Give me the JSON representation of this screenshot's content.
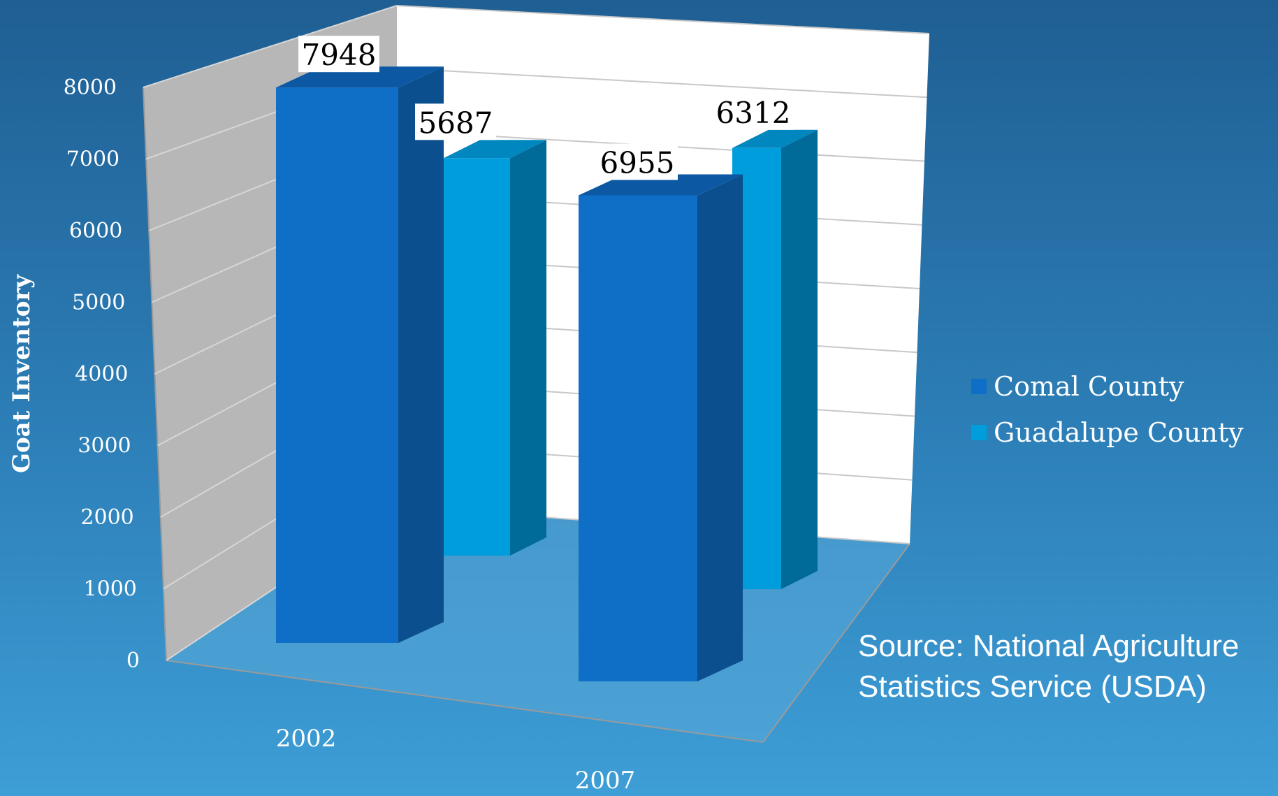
{
  "chart_data": {
    "type": "bar",
    "title": "",
    "xlabel": "",
    "ylabel": "Goat Inventory",
    "categories": [
      "2002",
      "2007"
    ],
    "series": [
      {
        "name": "Comal County",
        "values": [
          7948,
          6955
        ],
        "color": "#0f6fc6",
        "side_color": "#0b4f8f",
        "top_color": "#0c58a3"
      },
      {
        "name": "Guadalupe County",
        "values": [
          5687,
          6312
        ],
        "color": "#009ddc",
        "side_color": "#006a99",
        "top_color": "#0087bf"
      }
    ],
    "ylim": [
      0,
      8000
    ],
    "yticks": [
      "0",
      "1000",
      "2000",
      "3000",
      "4000",
      "5000",
      "6000",
      "7000",
      "8000"
    ],
    "data_labels": [
      "7948",
      "5687",
      "6955",
      "6312"
    ],
    "grid": true,
    "legend_position": "right",
    "three_d": true
  },
  "source": {
    "line1": "Source: National Agriculture",
    "line2": "Statistics Service (USDA)"
  }
}
